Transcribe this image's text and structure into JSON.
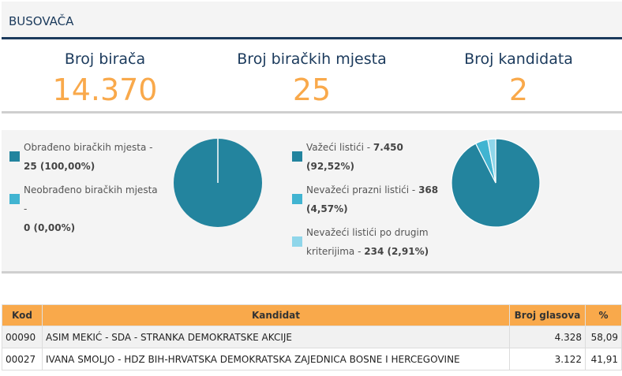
{
  "header": {
    "title": "BUSOVAČA"
  },
  "stats": [
    {
      "label": "Broj birača",
      "value": "14.370"
    },
    {
      "label": "Broj biračkih mjesta",
      "value": "25"
    },
    {
      "label": "Broj kandidata",
      "value": "2"
    }
  ],
  "colors": {
    "dark": "#23849e",
    "mid": "#41b4d1",
    "light": "#8fd6ea",
    "accent": "#f9a94b",
    "navy": "#1b3a5c"
  },
  "polling": {
    "items": [
      {
        "label": "Obrađeno biračkih mjesta - ",
        "value": "25 (100,00%)",
        "fraction": 1.0
      },
      {
        "label": "Neobrađeno biračkih mjesta - ",
        "value": "0 (0,00%)",
        "fraction": 0.0
      }
    ]
  },
  "ballots": {
    "items": [
      {
        "label": "Važeći listići - ",
        "value": "7.450",
        "value2": "(92,52%)",
        "fraction": 0.9252
      },
      {
        "label": "Nevažeći prazni listići - ",
        "value": "368",
        "value2": "(4,57%)",
        "fraction": 0.0457
      },
      {
        "label": "Nevažeći listići po drugim",
        "label2": "kriterijima - ",
        "value": "234 (2,91%)",
        "fraction": 0.0291
      }
    ]
  },
  "table": {
    "headers": {
      "kod": "Kod",
      "kandidat": "Kandidat",
      "glasovi": "Broj glasova",
      "pct": "%"
    },
    "rows": [
      {
        "kod": "00090",
        "kandidat": "ASIM MEKIĆ - SDA - STRANKA DEMOKRATSKE AKCIJE",
        "glasovi": "4.328",
        "pct": "58,09"
      },
      {
        "kod": "00027",
        "kandidat": "IVANA SMOLJO - HDZ BIH-HRVATSKA DEMOKRATSKA ZAJEDNICA BOSNE I HERCEGOVINE",
        "glasovi": "3.122",
        "pct": "41,91"
      }
    ]
  }
}
